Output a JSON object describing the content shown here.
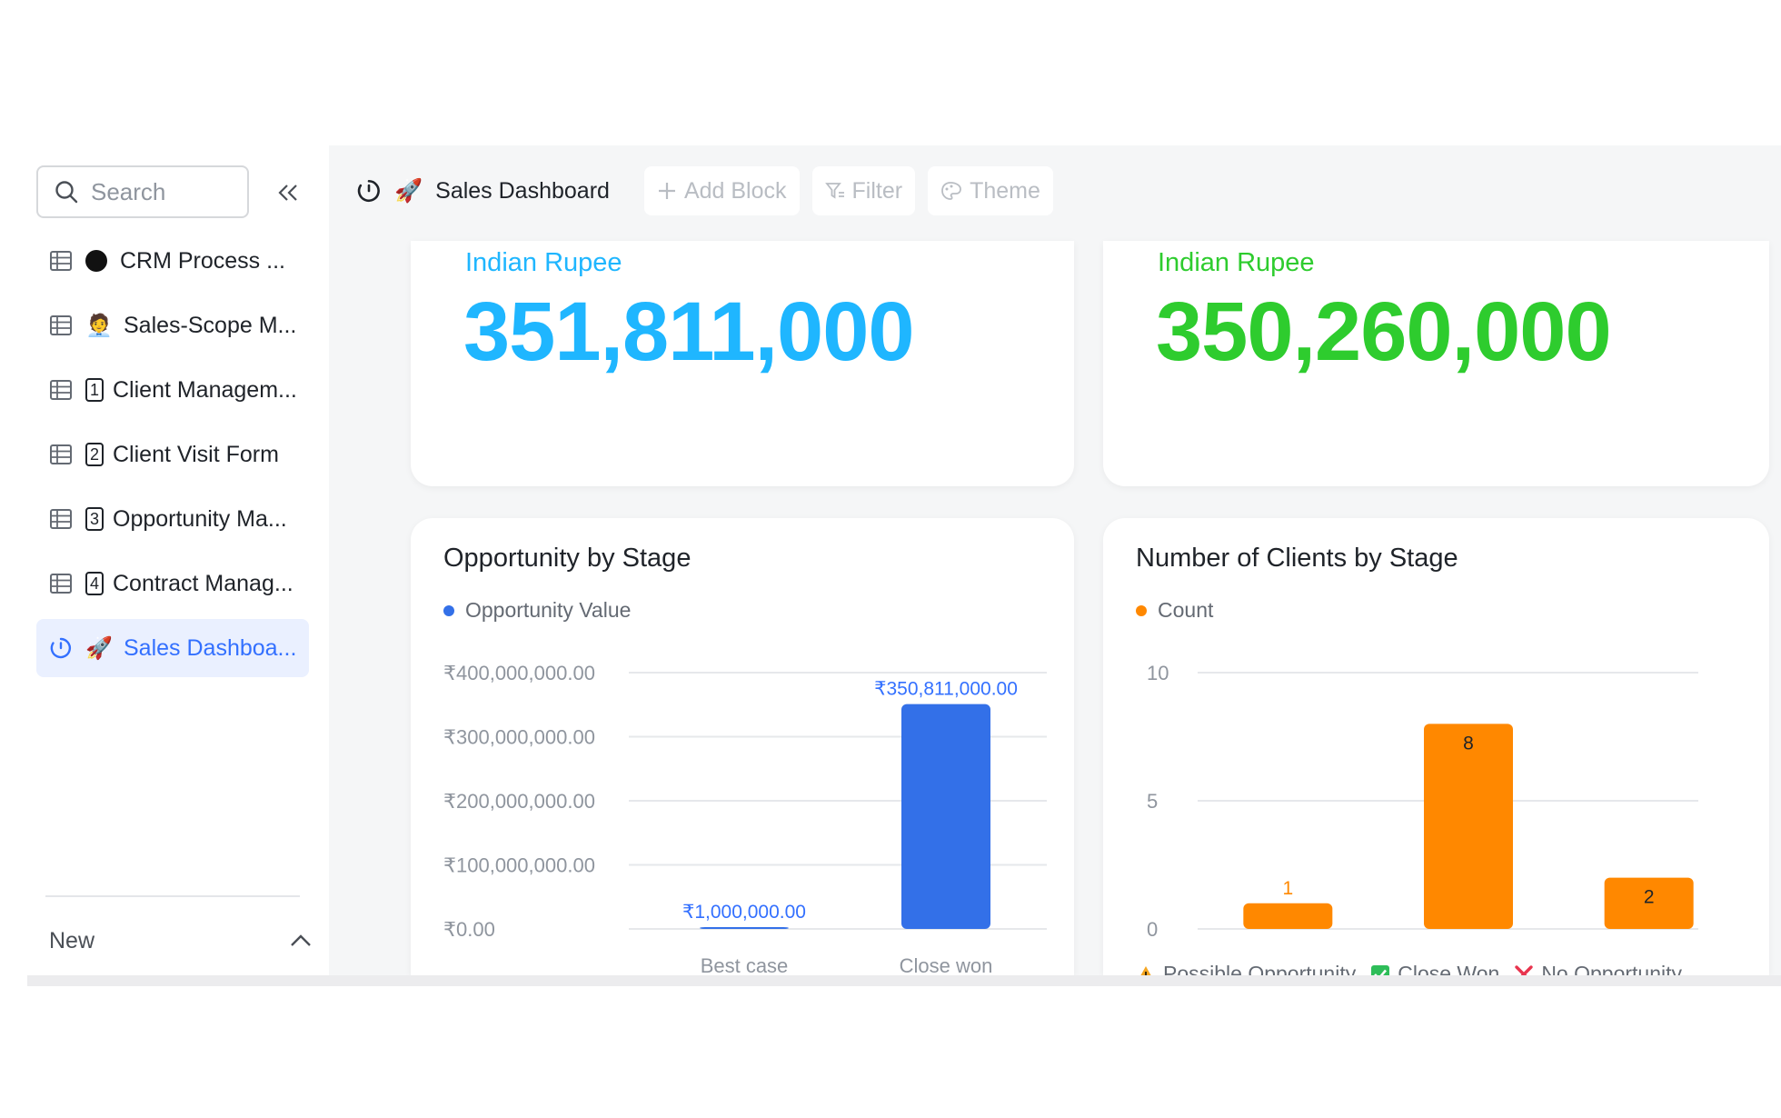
{
  "sidebar": {
    "search_placeholder": "Search",
    "items": [
      {
        "label": "CRM Process ..."
      },
      {
        "emoji": "🧑‍💼",
        "label": "Sales-Scope M..."
      },
      {
        "num": "1",
        "label": "Client Managem..."
      },
      {
        "num": "2",
        "label": "Client Visit Form"
      },
      {
        "num": "3",
        "label": "Opportunity Ma..."
      },
      {
        "num": "4",
        "label": "Contract Manag..."
      },
      {
        "emoji": "🚀",
        "label": "Sales Dashboa..."
      }
    ],
    "new_label": "New"
  },
  "toolbar": {
    "title_emoji": "🚀",
    "title": "Sales Dashboard",
    "add_block": "Add Block",
    "filter": "Filter",
    "theme": "Theme"
  },
  "kpi": [
    {
      "label": "Indian Rupee",
      "value": "351,811,000",
      "color": "#1fb6ff"
    },
    {
      "label": "Indian Rupee",
      "value": "350,260,000",
      "color": "#2ecc2e"
    }
  ],
  "colors": {
    "accent": "#3370ff",
    "blue_bar": "#3370e8",
    "orange_bar": "#ff8800"
  },
  "chart_data": [
    {
      "type": "bar",
      "title": "Opportunity by Stage",
      "series": [
        {
          "name": "Opportunity Value",
          "values": [
            1000000,
            350811000
          ]
        }
      ],
      "categories": [
        "Best case",
        "Close won"
      ],
      "data_labels": [
        "₹1,000,000.00",
        "₹350,811,000.00"
      ],
      "y_ticks": [
        "₹0.00",
        "₹100,000,000.00",
        "₹200,000,000.00",
        "₹300,000,000.00",
        "₹400,000,000.00"
      ],
      "y_tick_values": [
        0,
        100000000,
        200000000,
        300000000,
        400000000
      ],
      "ylim": [
        0,
        400000000
      ],
      "grid": true,
      "legend": "top-left"
    },
    {
      "type": "bar",
      "title": "Number of Clients by Stage",
      "series": [
        {
          "name": "Count",
          "values": [
            1,
            8,
            2
          ]
        }
      ],
      "categories": [
        "Possible Opportunity",
        "Close Won",
        "No Opportunity"
      ],
      "category_icons": [
        "warning-icon",
        "check-icon",
        "cross-icon"
      ],
      "data_labels": [
        "1",
        "8",
        "2"
      ],
      "y_ticks": [
        "0",
        "5",
        "10"
      ],
      "y_tick_values": [
        0,
        5,
        10
      ],
      "ylim": [
        0,
        10
      ],
      "grid": true,
      "legend": "top-left"
    }
  ]
}
